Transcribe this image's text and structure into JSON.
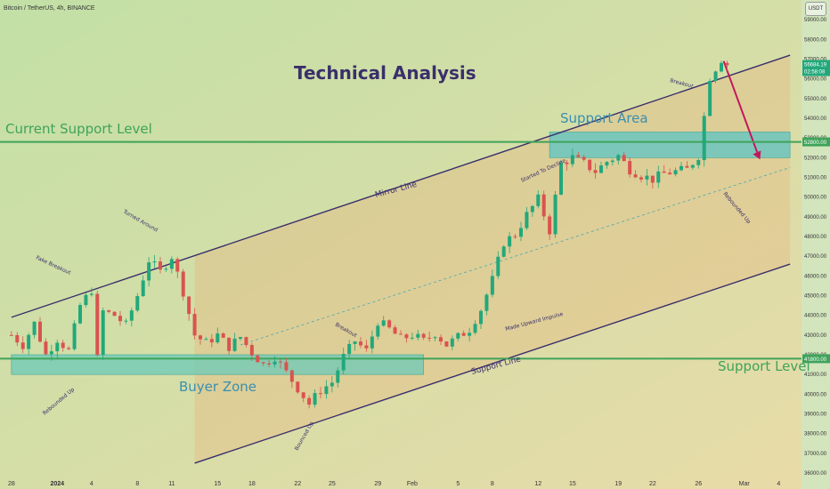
{
  "header": {
    "symbol_title": "Bitcoin / TetherUS, 4h, BINANCE",
    "currency": "USDT"
  },
  "chart_data": {
    "type": "candlestick",
    "title": "Technical Analysis",
    "ylim": [
      36000,
      60000
    ],
    "y_ticks": [
      36000,
      37000,
      38000,
      39000,
      40000,
      41000,
      42000,
      43000,
      44000,
      45000,
      46000,
      47000,
      48000,
      49000,
      50000,
      51000,
      52000,
      53000,
      54000,
      55000,
      56000,
      57000,
      58000,
      59000
    ],
    "y_tick_labels": [
      "36000.00",
      "37000.00",
      "38000.00",
      "39000.00",
      "40000.00",
      "41000.00",
      "42000.00",
      "43000.00",
      "44000.00",
      "45000.00",
      "46000.00",
      "47000.00",
      "48000.00",
      "49000.00",
      "50000.00",
      "51000.00",
      "52000.00",
      "53000.00",
      "54000.00",
      "55000.00",
      "56000.00",
      "57000.00",
      "58000.00",
      "59000.00"
    ],
    "x_ticks": [
      {
        "label": "28",
        "day": 0
      },
      {
        "label": "2024",
        "day": 4
      },
      {
        "label": "4",
        "day": 7
      },
      {
        "label": "8",
        "day": 11
      },
      {
        "label": "11",
        "day": 14
      },
      {
        "label": "15",
        "day": 18
      },
      {
        "label": "18",
        "day": 21
      },
      {
        "label": "22",
        "day": 25
      },
      {
        "label": "25",
        "day": 28
      },
      {
        "label": "29",
        "day": 32
      },
      {
        "label": "Feb",
        "day": 35
      },
      {
        "label": "5",
        "day": 39
      },
      {
        "label": "8",
        "day": 42
      },
      {
        "label": "12",
        "day": 46
      },
      {
        "label": "15",
        "day": 49
      },
      {
        "label": "19",
        "day": 53
      },
      {
        "label": "22",
        "day": 56
      },
      {
        "label": "26",
        "day": 60
      },
      {
        "label": "Mar",
        "day": 64
      },
      {
        "label": "4",
        "day": 67
      }
    ],
    "price_path": [
      [
        0,
        43000
      ],
      [
        1,
        42500
      ],
      [
        2,
        43600
      ],
      [
        3,
        42000
      ],
      [
        4,
        42800
      ],
      [
        5,
        42200
      ],
      [
        6,
        44500
      ],
      [
        7,
        45300
      ],
      [
        7.5,
        41800
      ],
      [
        8,
        44200
      ],
      [
        9,
        44000
      ],
      [
        10,
        43500
      ],
      [
        11,
        45000
      ],
      [
        12,
        46800
      ],
      [
        13,
        46200
      ],
      [
        14,
        47000
      ],
      [
        15,
        45200
      ],
      [
        16,
        43000
      ],
      [
        17,
        42600
      ],
      [
        18,
        43000
      ],
      [
        19,
        42400
      ],
      [
        20,
        42900
      ],
      [
        21,
        42100
      ],
      [
        22,
        41500
      ],
      [
        23,
        41900
      ],
      [
        24,
        41100
      ],
      [
        25,
        40300
      ],
      [
        26,
        39500
      ],
      [
        27,
        40200
      ],
      [
        28,
        40600
      ],
      [
        29,
        41900
      ],
      [
        30,
        42700
      ],
      [
        31,
        42200
      ],
      [
        32,
        43700
      ],
      [
        33,
        43300
      ],
      [
        34,
        42800
      ],
      [
        35,
        43000
      ],
      [
        36,
        42700
      ],
      [
        37,
        43100
      ],
      [
        38,
        42500
      ],
      [
        39,
        42900
      ],
      [
        40,
        43300
      ],
      [
        41,
        44300
      ],
      [
        42,
        45800
      ],
      [
        43,
        47700
      ],
      [
        44,
        48100
      ],
      [
        45,
        49100
      ],
      [
        46,
        49900
      ],
      [
        47,
        48300
      ],
      [
        48,
        51700
      ],
      [
        49,
        52000
      ],
      [
        50,
        51700
      ],
      [
        51,
        51300
      ],
      [
        52,
        51800
      ],
      [
        53,
        52100
      ],
      [
        54,
        51400
      ],
      [
        55,
        51100
      ],
      [
        56,
        50900
      ],
      [
        57,
        51200
      ],
      [
        58,
        51300
      ],
      [
        59,
        51400
      ],
      [
        60,
        52100
      ],
      [
        61,
        56100
      ],
      [
        62,
        57000
      ],
      [
        62.6,
        56684
      ]
    ],
    "levels": [
      {
        "name": "Current Support Level",
        "value": 52800,
        "label": "52800.00",
        "color": "#3fa35a"
      },
      {
        "name": "Support Level",
        "value": 41800,
        "label": "41800.00",
        "color": "#3fa35a"
      }
    ],
    "last_price": {
      "value": 56684.19,
      "label": "56684.19",
      "countdown": "02:58:08"
    },
    "channel": {
      "upper": [
        [
          0,
          43900
        ],
        [
          68,
          57200
        ]
      ],
      "lower": [
        [
          16,
          36500
        ],
        [
          68,
          46600
        ]
      ],
      "mid_dashed": [
        [
          20,
          42500
        ],
        [
          68,
          51500
        ]
      ]
    },
    "zones": [
      {
        "name": "Buyer Zone",
        "x0": 0,
        "x1": 36,
        "y0": 41000,
        "y1": 42000,
        "color": "#6bc9b8"
      },
      {
        "name": "Support Area",
        "x0": 47,
        "x1": 68,
        "y0": 52000,
        "y1": 53300,
        "color": "#5bc4c4"
      }
    ],
    "annotations": [
      "Technical Analysis",
      "Current Support Level",
      "Support Area",
      "Buyer Zone",
      "Support Level",
      "Mirror Line",
      "Support Line",
      "Fake Breakout",
      "Turned Around",
      "Rebounded Up",
      "Bounced Up",
      "Breakout",
      "Made Upward Impulse",
      "Started To Decline",
      "Breakout",
      "Rebounded Up"
    ],
    "colors": {
      "up": "#22a87b",
      "down": "#d9534f",
      "channel": "#3a2f6b",
      "forecast": "#c2185b"
    }
  }
}
